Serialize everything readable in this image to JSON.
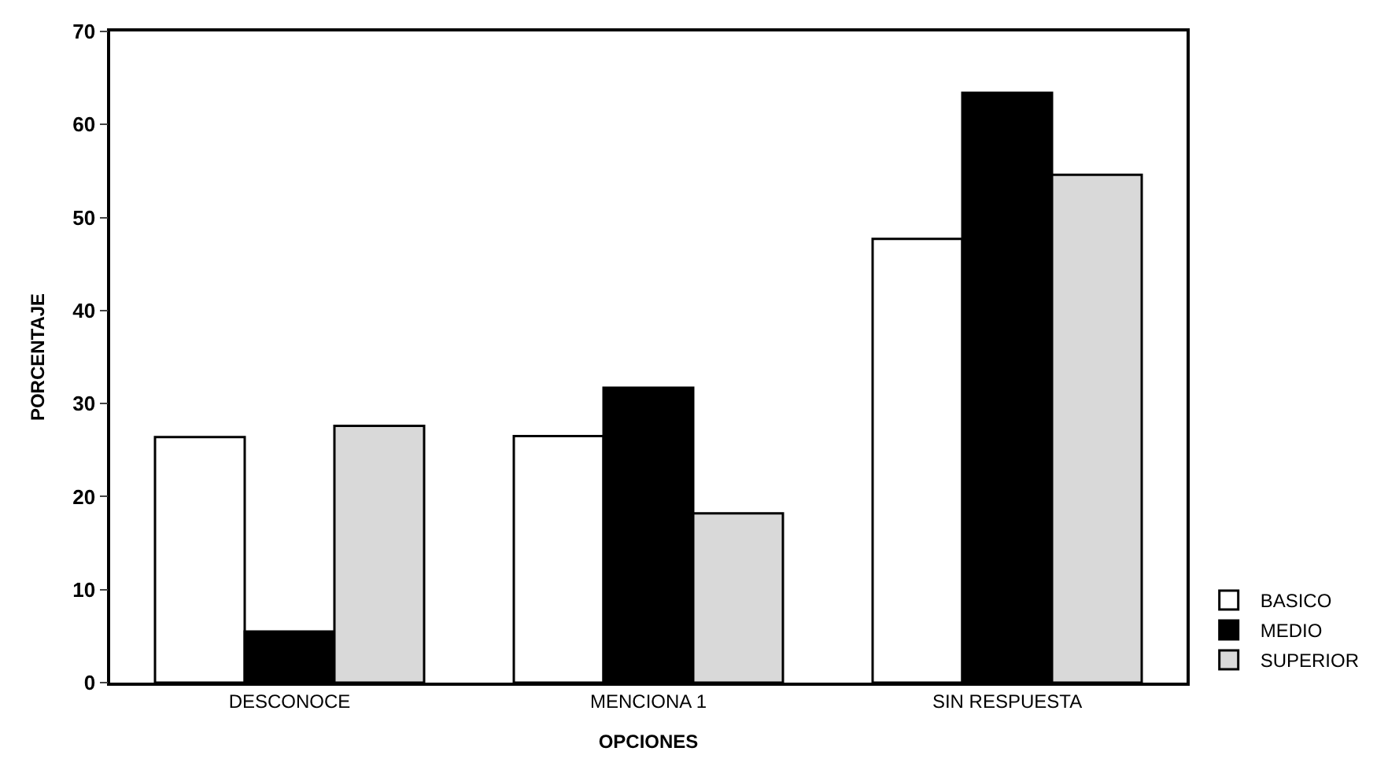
{
  "chart_data": {
    "type": "bar",
    "xlabel": "OPCIONES",
    "ylabel": "PORCENTAJE",
    "categories": [
      "DESCONOCE",
      "MENCIONA 1",
      "SIN RESPUESTA"
    ],
    "series": [
      {
        "name": "BASICO",
        "color": "#ffffff",
        "values": [
          26.4,
          26.5,
          47.7
        ]
      },
      {
        "name": "MEDIO",
        "color": "#000000",
        "values": [
          5.5,
          31.7,
          63.4
        ]
      },
      {
        "name": "SUPERIOR",
        "color": "#d9d9d9",
        "values": [
          27.6,
          18.2,
          54.6
        ]
      }
    ],
    "ylim": [
      0,
      70
    ],
    "yticks": [
      0,
      10,
      20,
      30,
      40,
      50,
      60,
      70
    ],
    "legend": "bottom right"
  }
}
